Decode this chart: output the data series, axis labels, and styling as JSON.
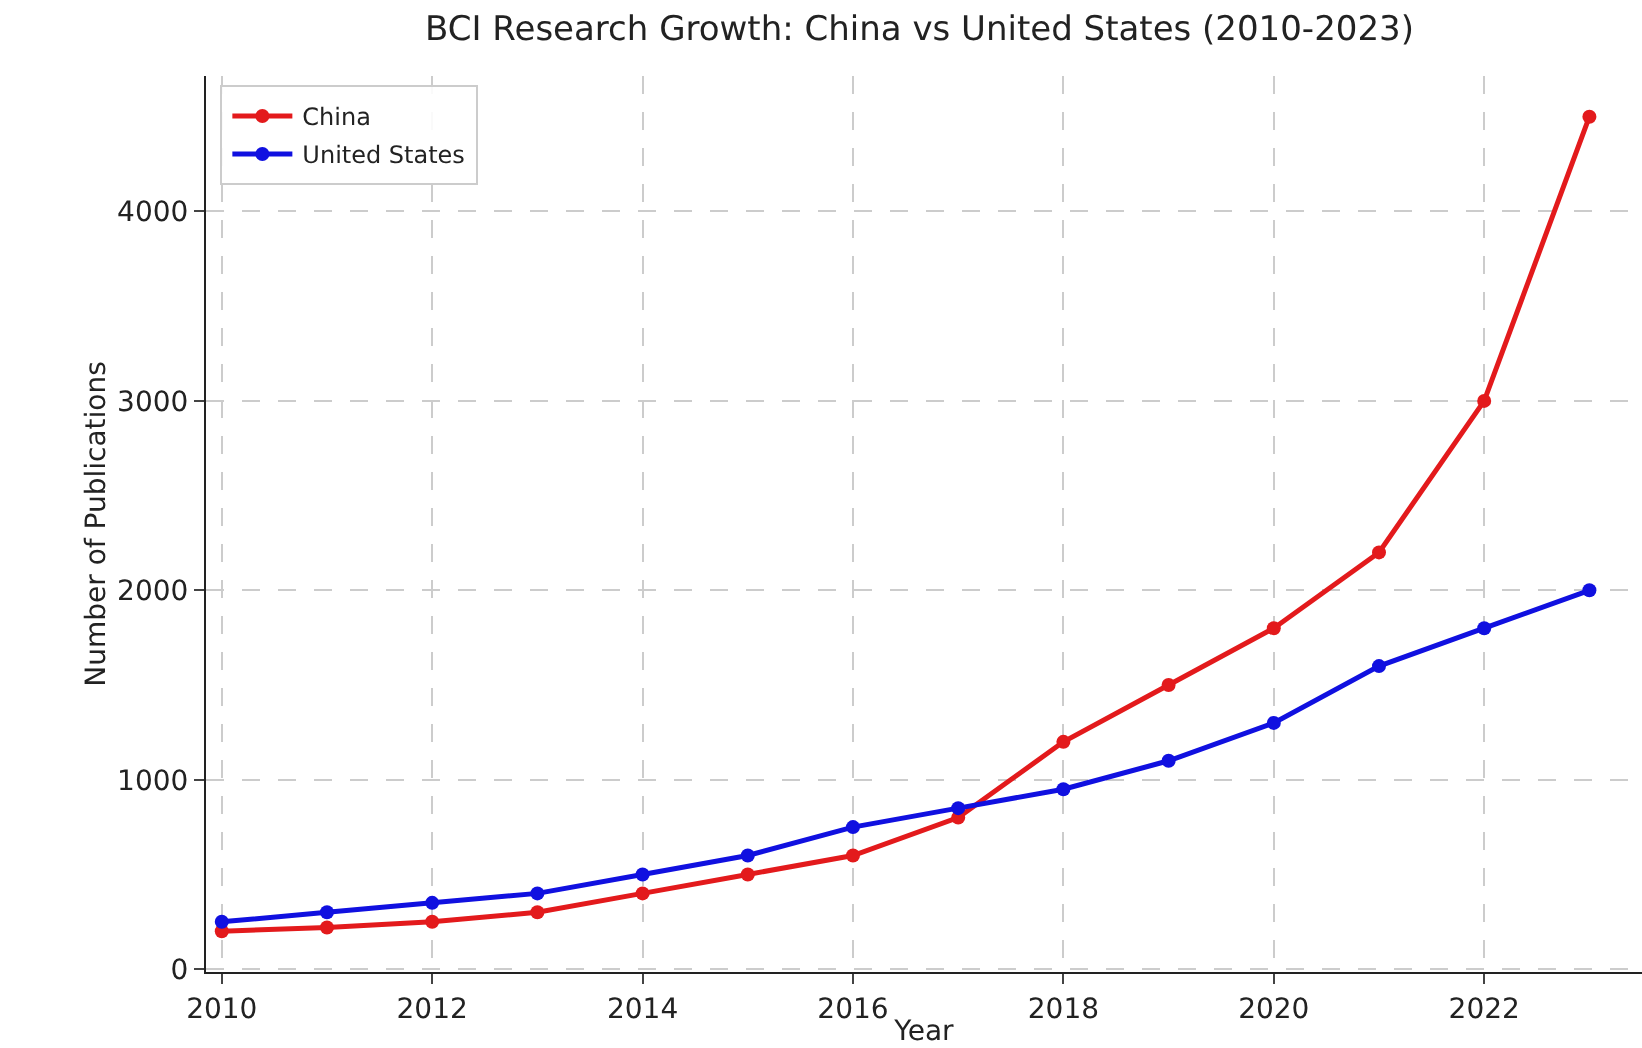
{
  "chart_data": {
    "type": "line",
    "title": "BCI Research Growth: China vs United States (2010-2023)",
    "xlabel": "Year",
    "ylabel": "Number of Publications",
    "x": [
      2010,
      2011,
      2012,
      2013,
      2014,
      2015,
      2016,
      2017,
      2018,
      2019,
      2020,
      2021,
      2022,
      2023
    ],
    "series": [
      {
        "name": "China",
        "color": "#e31a1c",
        "values": [
          200,
          220,
          250,
          300,
          400,
          500,
          600,
          800,
          1200,
          1500,
          1800,
          2200,
          3000,
          4500
        ]
      },
      {
        "name": "United States",
        "color": "#1010e0",
        "values": [
          250,
          300,
          350,
          400,
          500,
          600,
          750,
          850,
          950,
          1100,
          1300,
          1600,
          1800,
          2000
        ]
      }
    ],
    "xlim": [
      2009.85,
      2023.5
    ],
    "xticks": [
      2010,
      2012,
      2014,
      2016,
      2018,
      2020,
      2022
    ],
    "ylim": [
      -15,
      4715
    ],
    "yticks": [
      0,
      1000,
      2000,
      3000,
      4000
    ],
    "grid": true,
    "legend": "top left",
    "marker": "circle",
    "line_style": "solid"
  }
}
